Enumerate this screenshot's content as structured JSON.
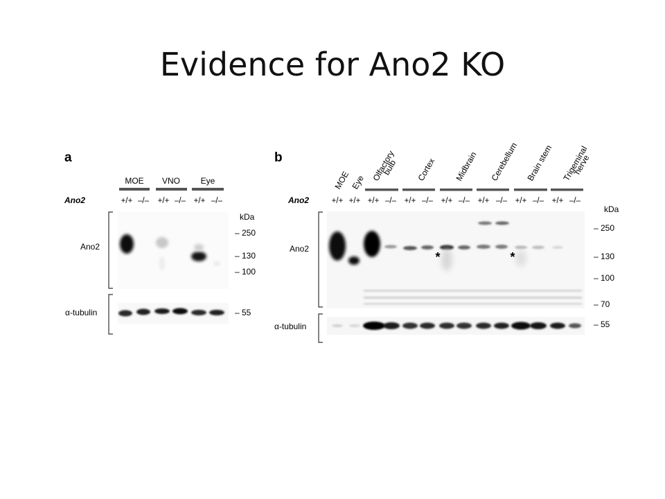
{
  "slide": {
    "title": "Evidence for Ano2 KO"
  },
  "panel_a": {
    "letter": "a",
    "gene_label": "Ano2",
    "groups": [
      "MOE",
      "VNO",
      "Eye"
    ],
    "genotypes": [
      "+/+",
      "–/–",
      "+/+",
      "–/–",
      "+/+",
      "–/–"
    ],
    "blot_labels": [
      "Ano2",
      "α-tubulin"
    ],
    "kda_unit": "kDa",
    "markers": [
      "– 250",
      "– 130",
      "– 100",
      "– 55"
    ]
  },
  "panel_b": {
    "letter": "b",
    "gene_label": "Ano2",
    "single_labels": [
      "MOE",
      "Eye"
    ],
    "group_labels": [
      [
        "Olfactory",
        "bulb"
      ],
      [
        "Cortex"
      ],
      [
        "Midbrain"
      ],
      [
        "Cerebellum"
      ],
      [
        "Brain stem"
      ],
      [
        "Trigeminal",
        "nerve"
      ]
    ],
    "genotypes": [
      "+/+",
      "+/+",
      "+/+",
      "–/–",
      "+/+",
      "–/–",
      "+/+",
      "–/–",
      "+/+",
      "–/–",
      "+/+",
      "–/–",
      "+/+",
      "–/–"
    ],
    "blot_labels": [
      "Ano2",
      "α-tubulin"
    ],
    "asterisks": [
      "*",
      "*"
    ],
    "kda_unit": "kDa",
    "markers": [
      "– 250",
      "– 130",
      "– 100",
      "– 70",
      "– 55"
    ]
  }
}
